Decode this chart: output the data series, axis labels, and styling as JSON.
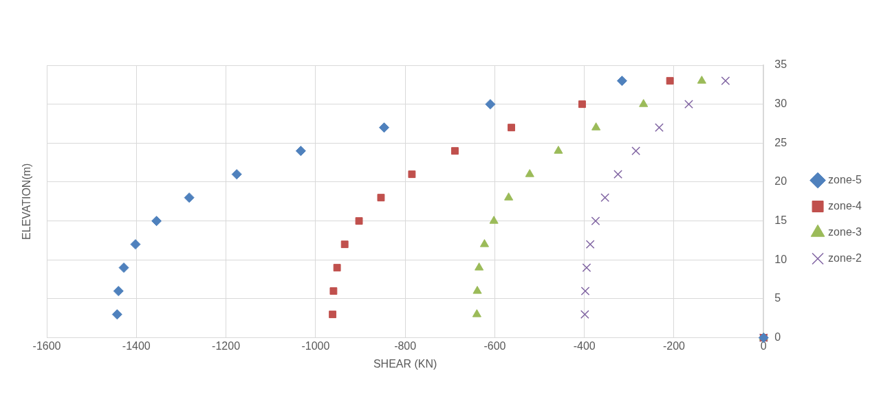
{
  "chart_data": {
    "type": "scatter",
    "xlabel": "SHEAR (KN)",
    "ylabel": "ELEVATION(m)",
    "xlim": [
      -1600,
      0
    ],
    "xticks": [
      -1600,
      -1400,
      -1200,
      -1000,
      -800,
      -600,
      -400,
      -200,
      0
    ],
    "ylim": [
      0,
      35
    ],
    "yticks": [
      0,
      5,
      10,
      15,
      20,
      25,
      30,
      35
    ],
    "grid": true,
    "legend": "right",
    "series": [
      {
        "name": "zone-5",
        "color": "#4f81bd",
        "marker": "diamond",
        "x": [
          0,
          -1443,
          -1440,
          -1428,
          -1402,
          -1355,
          -1282,
          -1176,
          -1033,
          -847,
          -610,
          -316
        ],
        "values": [
          0,
          3,
          6,
          9,
          12,
          15,
          18,
          21,
          24,
          27,
          30,
          33
        ]
      },
      {
        "name": "zone-4",
        "color": "#c0504d",
        "marker": "square",
        "x": [
          0,
          -962,
          -960,
          -952,
          -935,
          -903,
          -854,
          -785,
          -689,
          -563,
          -405,
          -209
        ],
        "values": [
          0,
          3,
          6,
          9,
          12,
          15,
          18,
          21,
          24,
          27,
          30,
          33
        ]
      },
      {
        "name": "zone-3",
        "color": "#9bbb59",
        "marker": "triangle",
        "x": [
          0,
          -640,
          -639,
          -635,
          -623,
          -602,
          -569,
          -522,
          -458,
          -374,
          -268,
          -138
        ],
        "values": [
          0,
          3,
          6,
          9,
          12,
          15,
          18,
          21,
          24,
          27,
          30,
          33
        ]
      },
      {
        "name": "zone-2",
        "color": "#8064a2",
        "marker": "cross",
        "x": [
          0,
          -399,
          -398,
          -395,
          -387,
          -375,
          -354,
          -325,
          -285,
          -233,
          -167,
          -85
        ],
        "values": [
          0,
          3,
          6,
          9,
          12,
          15,
          18,
          21,
          24,
          27,
          30,
          33
        ]
      }
    ]
  }
}
